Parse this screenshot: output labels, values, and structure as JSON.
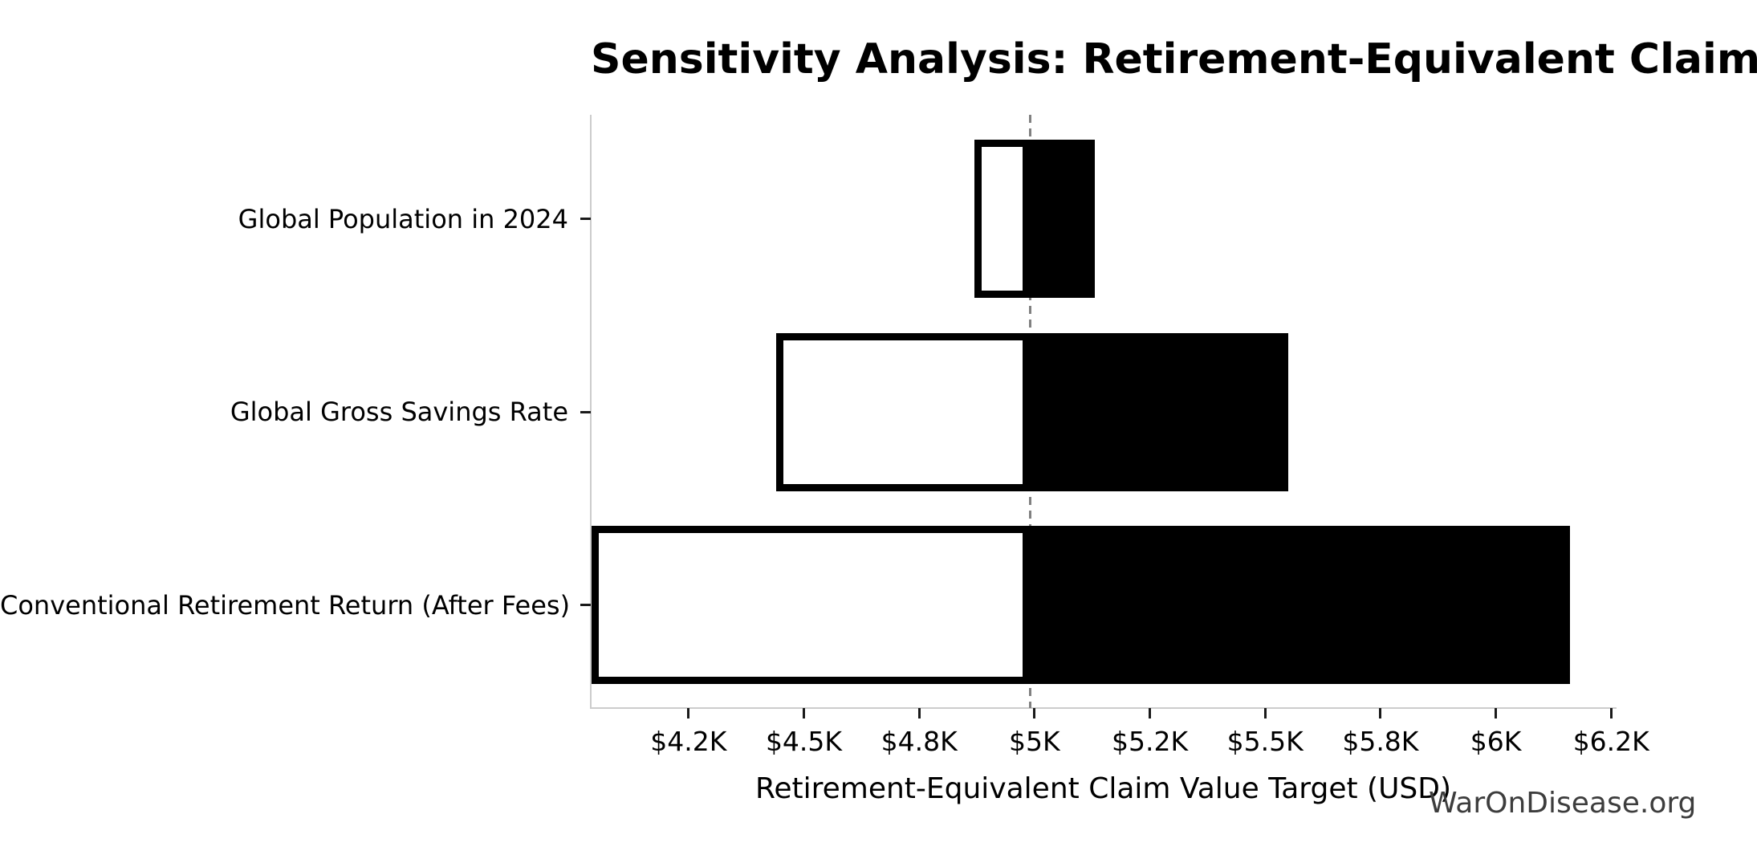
{
  "chart": {
    "watermark": "WarOnDisease.org"
  },
  "chart_data": {
    "type": "bar",
    "variant": "tornado-sensitivity",
    "orientation": "horizontal",
    "title": "Sensitivity Analysis: Retirement-Equivalent Claim Value Target",
    "xlabel": "Retirement-Equivalent Claim Value Target (USD)",
    "ylabel": "",
    "unit": "USD thousands",
    "grid": false,
    "legend": null,
    "xlim": [
      4.038,
      6.26
    ],
    "baseline": 4.99,
    "baseline_style": {
      "color": "#808080",
      "dashed": true
    },
    "categories": [
      "Global Population in 2024",
      "Global Gross Savings Rate",
      "Conventional Retirement Return (After Fees)"
    ],
    "series": [
      {
        "name": "low-end-value",
        "fill": "#ffffff",
        "edge": "#000000",
        "values": [
          4.87,
          4.44,
          4.04
        ]
      },
      {
        "name": "high-end-value",
        "fill": "#000000",
        "edge": "#000000",
        "values": [
          5.13,
          5.55,
          6.16
        ]
      }
    ],
    "xticks": [
      {
        "value": 4.25,
        "label": "$4.2K"
      },
      {
        "value": 4.5,
        "label": "$4.5K"
      },
      {
        "value": 4.75,
        "label": "$4.8K"
      },
      {
        "value": 5.0,
        "label": "$5K"
      },
      {
        "value": 5.25,
        "label": "$5.2K"
      },
      {
        "value": 5.5,
        "label": "$5.5K"
      },
      {
        "value": 5.75,
        "label": "$5.8K"
      },
      {
        "value": 6.0,
        "label": "$6K"
      },
      {
        "value": 6.25,
        "label": "$6.2K"
      }
    ]
  },
  "colors": {
    "spine": "#cccccc",
    "tick_mark": "#1a1a1a",
    "text": "#000000",
    "watermark_text": "#3d3d3d",
    "baseline_line": "#808080",
    "bar_low_fill": "#ffffff",
    "bar_high_fill": "#000000",
    "bar_edge": "#000000"
  }
}
